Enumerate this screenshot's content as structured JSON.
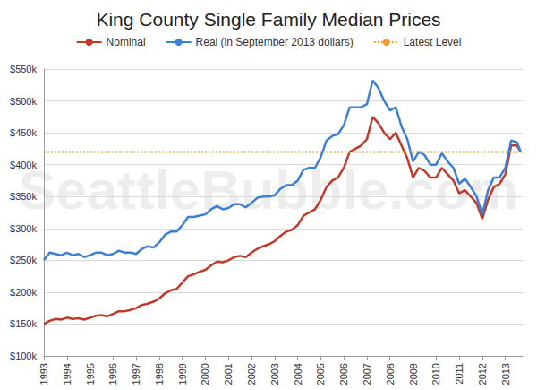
{
  "chart_data": {
    "type": "line",
    "title": "King County Single Family Median Prices",
    "watermark": "SeattleBubble.com",
    "legend": "top",
    "grid": true,
    "x": [
      1993,
      1993.25,
      1993.5,
      1993.75,
      1994,
      1994.25,
      1994.5,
      1994.75,
      1995,
      1995.25,
      1995.5,
      1995.75,
      1996,
      1996.25,
      1996.5,
      1996.75,
      1997,
      1997.25,
      1997.5,
      1997.75,
      1998,
      1998.25,
      1998.5,
      1998.75,
      1999,
      1999.25,
      1999.5,
      1999.75,
      2000,
      2000.25,
      2000.5,
      2000.75,
      2001,
      2001.25,
      2001.5,
      2001.75,
      2002,
      2002.25,
      2002.5,
      2002.75,
      2003,
      2003.25,
      2003.5,
      2003.75,
      2004,
      2004.25,
      2004.5,
      2004.75,
      2005,
      2005.25,
      2005.5,
      2005.75,
      2006,
      2006.25,
      2006.5,
      2006.75,
      2007,
      2007.25,
      2007.5,
      2007.75,
      2008,
      2008.25,
      2008.5,
      2008.75,
      2009,
      2009.25,
      2009.5,
      2009.75,
      2010,
      2010.25,
      2010.5,
      2010.75,
      2011,
      2011.25,
      2011.5,
      2011.75,
      2012,
      2012.25,
      2012.5,
      2012.75,
      2013,
      2013.25,
      2013.5,
      2013.67
    ],
    "xlim": [
      1993,
      2013.75
    ],
    "xticks": [
      1993,
      1994,
      1995,
      1996,
      1997,
      1998,
      1999,
      2000,
      2001,
      2002,
      2003,
      2004,
      2005,
      2006,
      2007,
      2008,
      2009,
      2010,
      2011,
      2012,
      2013
    ],
    "ylim": [
      100,
      550
    ],
    "yticks": [
      {
        "value": 100,
        "label": "$100k"
      },
      {
        "value": 150,
        "label": "$150k"
      },
      {
        "value": 200,
        "label": "$200k"
      },
      {
        "value": 250,
        "label": "$250k"
      },
      {
        "value": 300,
        "label": "$300k"
      },
      {
        "value": 350,
        "label": "$350k"
      },
      {
        "value": 400,
        "label": "$400k"
      },
      {
        "value": 450,
        "label": "$450k"
      },
      {
        "value": 500,
        "label": "$500k"
      },
      {
        "value": 550,
        "label": "$550k"
      }
    ],
    "series": [
      {
        "name": "Nominal",
        "color": "#c0392b",
        "line_style": "solid",
        "values": [
          150,
          155,
          158,
          157,
          160,
          158,
          159,
          157,
          160,
          163,
          164,
          162,
          166,
          170,
          170,
          172,
          175,
          180,
          182,
          185,
          190,
          198,
          203,
          205,
          215,
          225,
          228,
          232,
          235,
          242,
          248,
          247,
          250,
          255,
          257,
          255,
          262,
          268,
          272,
          275,
          280,
          288,
          295,
          298,
          305,
          320,
          325,
          330,
          345,
          365,
          375,
          380,
          395,
          420,
          425,
          430,
          440,
          475,
          465,
          450,
          440,
          450,
          430,
          410,
          380,
          395,
          390,
          380,
          380,
          395,
          385,
          375,
          355,
          360,
          350,
          340,
          315,
          345,
          365,
          370,
          385,
          430,
          430,
          420
        ]
      },
      {
        "name": "Real (in September 2013 dollars)",
        "color": "#3d7fd6",
        "line_style": "solid",
        "values": [
          250,
          262,
          260,
          258,
          262,
          258,
          260,
          255,
          258,
          262,
          262,
          258,
          260,
          265,
          262,
          262,
          260,
          268,
          272,
          270,
          278,
          290,
          295,
          295,
          305,
          318,
          318,
          320,
          322,
          330,
          335,
          330,
          332,
          338,
          338,
          333,
          340,
          348,
          350,
          350,
          352,
          362,
          368,
          368,
          375,
          392,
          395,
          395,
          412,
          438,
          445,
          448,
          462,
          490,
          490,
          490,
          495,
          532,
          520,
          500,
          485,
          490,
          460,
          440,
          405,
          420,
          415,
          400,
          400,
          418,
          405,
          395,
          370,
          378,
          365,
          350,
          322,
          360,
          380,
          380,
          395,
          438,
          435,
          420
        ]
      },
      {
        "name": "Latest Level",
        "type": "hline",
        "color": "#f0a030",
        "line_style": "dotted",
        "value": 420
      }
    ]
  }
}
